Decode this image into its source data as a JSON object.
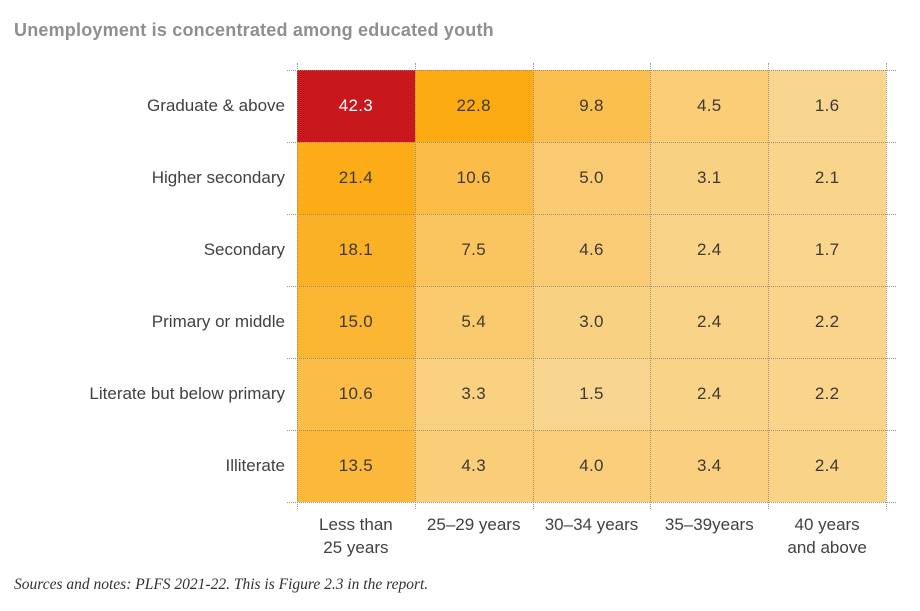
{
  "title": "Unemployment is concentrated among educated youth",
  "footer": "Sources and notes: PLFS 2021-22. This is Figure 2.3 in the report.",
  "colors": {
    "background": "#FFFFFF",
    "title": "#8D8F92",
    "labels": "#3F4145",
    "cell_text_dark": "#3E3A33",
    "cell_text_light": "#FFFFFF",
    "gridline": "#96846C",
    "max_cell": "#C9171E",
    "high_cell": "#FBAA10",
    "low_cell": "#F9D690"
  },
  "chart_data": {
    "type": "heatmap",
    "title": "Unemployment is concentrated among educated youth",
    "xlabel": "",
    "ylabel": "",
    "legend_position": "none",
    "grid": "dotted",
    "rows": [
      "Graduate & above",
      "Higher secondary",
      "Secondary",
      "Primary or middle",
      "Literate but below primary",
      "Illiterate"
    ],
    "columns": [
      "Less than\n25 years",
      "25–29 years",
      "30–34 years",
      "35–39years",
      "40 years\nand above"
    ],
    "values": [
      [
        42.3,
        22.8,
        9.8,
        4.5,
        1.6
      ],
      [
        21.4,
        10.6,
        5.0,
        3.1,
        2.1
      ],
      [
        18.1,
        7.5,
        4.6,
        2.4,
        1.7
      ],
      [
        15.0,
        5.4,
        3.0,
        2.4,
        2.2
      ],
      [
        10.6,
        3.3,
        1.5,
        2.4,
        2.2
      ],
      [
        13.5,
        4.3,
        4.0,
        3.4,
        2.4
      ]
    ],
    "value_decimals": 1,
    "color_scale": {
      "stops": [
        [
          1.5,
          "#F9D690"
        ],
        [
          5.0,
          "#FACB72"
        ],
        [
          11.0,
          "#FBBC45"
        ],
        [
          23.0,
          "#FBAA10"
        ],
        [
          40.0,
          "#C9171E"
        ]
      ],
      "light_text_threshold": 30
    }
  }
}
